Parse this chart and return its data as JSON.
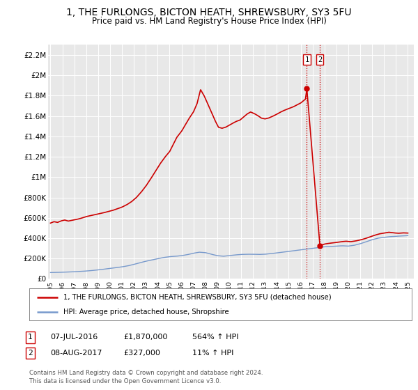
{
  "title": "1, THE FURLONGS, BICTON HEATH, SHREWSBURY, SY3 5FU",
  "subtitle": "Price paid vs. HM Land Registry's House Price Index (HPI)",
  "background_color": "#ffffff",
  "plot_background_color": "#e8e8e8",
  "grid_color": "#ffffff",
  "ylabel_ticks": [
    "£0",
    "£200K",
    "£400K",
    "£600K",
    "£800K",
    "£1M",
    "£1.2M",
    "£1.4M",
    "£1.6M",
    "£1.8M",
    "£2M",
    "£2.2M"
  ],
  "ytick_values": [
    0,
    200000,
    400000,
    600000,
    800000,
    1000000,
    1200000,
    1400000,
    1600000,
    1800000,
    2000000,
    2200000
  ],
  "ylim": [
    0,
    2300000
  ],
  "xlim_start": 1994.8,
  "xlim_end": 2025.5,
  "xtick_years": [
    1995,
    1996,
    1997,
    1998,
    1999,
    2000,
    2001,
    2002,
    2003,
    2004,
    2005,
    2006,
    2007,
    2008,
    2009,
    2010,
    2011,
    2012,
    2013,
    2014,
    2015,
    2016,
    2017,
    2018,
    2019,
    2020,
    2021,
    2022,
    2023,
    2024,
    2025
  ],
  "red_line_color": "#cc0000",
  "blue_line_color": "#7799cc",
  "vline_color": "#cc0000",
  "point1_x": 2016.52,
  "point1_y_red": 1870000,
  "point2_x": 2017.61,
  "point2_y_red": 327000,
  "legend_label_red": "1, THE FURLONGS, BICTON HEATH, SHREWSBURY, SY3 5FU (detached house)",
  "legend_label_blue": "HPI: Average price, detached house, Shropshire",
  "table_row1": [
    "1",
    "07-JUL-2016",
    "£1,870,000",
    "564% ↑ HPI"
  ],
  "table_row2": [
    "2",
    "08-AUG-2017",
    "£327,000",
    "11% ↑ HPI"
  ],
  "footer_text": "Contains HM Land Registry data © Crown copyright and database right 2024.\nThis data is licensed under the Open Government Licence v3.0."
}
